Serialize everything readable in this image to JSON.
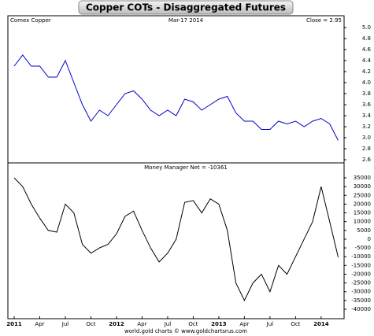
{
  "chart_data": [
    {
      "type": "line",
      "title": "Copper COTs - Disaggregated Futures",
      "label_left": "Comex Copper",
      "label_center": "Mar-17 2014",
      "annotation": "Close = 2.95",
      "x": [
        "2011-01",
        "2011-02",
        "2011-03",
        "2011-04",
        "2011-05",
        "2011-06",
        "2011-07",
        "2011-08",
        "2011-09",
        "2011-10",
        "2011-11",
        "2011-12",
        "2012-01",
        "2012-02",
        "2012-03",
        "2012-04",
        "2012-05",
        "2012-06",
        "2012-07",
        "2012-08",
        "2012-09",
        "2012-10",
        "2012-11",
        "2012-12",
        "2013-01",
        "2013-02",
        "2013-03",
        "2013-04",
        "2013-05",
        "2013-06",
        "2013-07",
        "2013-08",
        "2013-09",
        "2013-10",
        "2013-11",
        "2013-12",
        "2014-01",
        "2014-02",
        "2014-03"
      ],
      "xticks": [
        {
          "value": "2011-01",
          "label": "2011"
        },
        {
          "value": "2011-04",
          "label": "Apr"
        },
        {
          "value": "2011-07",
          "label": "Jul"
        },
        {
          "value": "2011-10",
          "label": "Oct"
        },
        {
          "value": "2012-01",
          "label": "2012"
        },
        {
          "value": "2012-04",
          "label": "Apr"
        },
        {
          "value": "2012-07",
          "label": "Jul"
        },
        {
          "value": "2012-10",
          "label": "Oct"
        },
        {
          "value": "2013-01",
          "label": "2013"
        },
        {
          "value": "2013-04",
          "label": "Apr"
        },
        {
          "value": "2013-07",
          "label": "Jul"
        },
        {
          "value": "2013-10",
          "label": "Oct"
        },
        {
          "value": "2014-01",
          "label": "2014"
        }
      ],
      "series": [
        {
          "name": "Comex Copper",
          "color": "#0000cc",
          "values": [
            4.3,
            4.5,
            4.3,
            4.3,
            4.1,
            4.1,
            4.4,
            4.0,
            3.6,
            3.3,
            3.5,
            3.4,
            3.6,
            3.8,
            3.85,
            3.7,
            3.5,
            3.4,
            3.5,
            3.4,
            3.7,
            3.65,
            3.5,
            3.6,
            3.7,
            3.75,
            3.45,
            3.3,
            3.3,
            3.15,
            3.15,
            3.3,
            3.25,
            3.3,
            3.2,
            3.3,
            3.35,
            3.25,
            2.95
          ]
        }
      ],
      "ylim": [
        2.6,
        5.0
      ],
      "yticks": [
        {
          "value": 5,
          "label": "5.0"
        },
        {
          "value": 4.8,
          "label": "4.8"
        },
        {
          "value": 4.6,
          "label": "4.6"
        },
        {
          "value": 4.4,
          "label": "4.4"
        },
        {
          "value": 4.2,
          "label": "4.2"
        },
        {
          "value": 4,
          "label": "4.0"
        },
        {
          "value": 3.8,
          "label": "3.8"
        },
        {
          "value": 3.6,
          "label": "3.6"
        },
        {
          "value": 3.4,
          "label": "3.4"
        },
        {
          "value": 3.2,
          "label": "3.2"
        },
        {
          "value": 3,
          "label": "3.0"
        },
        {
          "value": 2.8,
          "label": "2.8"
        },
        {
          "value": 2.6,
          "label": "2.6"
        }
      ]
    },
    {
      "type": "line",
      "label_center": "Money Manager Net  =  -10361",
      "footer": "world.gold charts © www.goldchartsrus.com",
      "x": [
        "2011-01",
        "2011-02",
        "2011-03",
        "2011-04",
        "2011-05",
        "2011-06",
        "2011-07",
        "2011-08",
        "2011-09",
        "2011-10",
        "2011-11",
        "2011-12",
        "2012-01",
        "2012-02",
        "2012-03",
        "2012-04",
        "2012-05",
        "2012-06",
        "2012-07",
        "2012-08",
        "2012-09",
        "2012-10",
        "2012-11",
        "2012-12",
        "2013-01",
        "2013-02",
        "2013-03",
        "2013-04",
        "2013-05",
        "2013-06",
        "2013-07",
        "2013-08",
        "2013-09",
        "2013-10",
        "2013-11",
        "2013-12",
        "2014-01",
        "2014-02",
        "2014-03"
      ],
      "series": [
        {
          "name": "Money Manager Net",
          "color": "#000000",
          "values": [
            35000,
            30000,
            20000,
            12000,
            5000,
            4000,
            20000,
            15000,
            -3000,
            -8000,
            -5000,
            -3000,
            3000,
            13000,
            16000,
            5000,
            -5000,
            -13000,
            -8000,
            0,
            21000,
            22000,
            15000,
            23000,
            20000,
            5000,
            -25000,
            -35000,
            -25000,
            -20000,
            -30000,
            -15000,
            -20000,
            -10000,
            0,
            10000,
            30000,
            10000,
            -10361
          ]
        }
      ],
      "ylim": [
        -40000,
        35000
      ],
      "yticks": [
        35000,
        30000,
        25000,
        20000,
        15000,
        10000,
        5000,
        0,
        -5000,
        -10000,
        -15000,
        -20000,
        -25000,
        -30000,
        -35000,
        -40000
      ]
    }
  ]
}
